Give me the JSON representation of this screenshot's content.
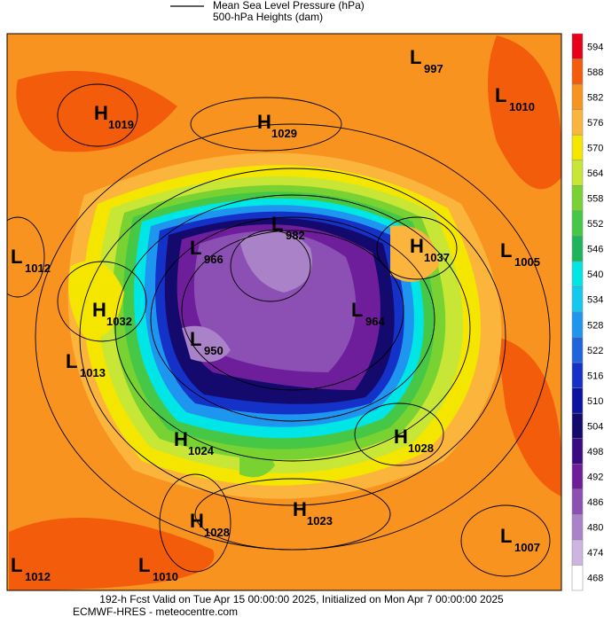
{
  "legend": [
    "Mean Sea Level Pressure (hPa)",
    "500-hPa Heights (dam)"
  ],
  "centers": [
    {
      "type": "L",
      "value": 997
    },
    {
      "type": "H",
      "value": 1019
    },
    {
      "type": "H",
      "value": 1029
    },
    {
      "type": "L",
      "value": 1010
    },
    {
      "type": "L",
      "value": 982
    },
    {
      "type": "L",
      "value": 1012
    },
    {
      "type": "L",
      "value": 966
    },
    {
      "type": "H",
      "value": 1037
    },
    {
      "type": "L",
      "value": 1005
    },
    {
      "type": "H",
      "value": 1032
    },
    {
      "type": "L",
      "value": 964
    },
    {
      "type": "L",
      "value": 950
    },
    {
      "type": "L",
      "value": 1013
    },
    {
      "type": "H",
      "value": 1024
    },
    {
      "type": "H",
      "value": 1028
    },
    {
      "type": "H",
      "value": 1023
    },
    {
      "type": "H",
      "value": 1028
    },
    {
      "type": "L",
      "value": 1007
    },
    {
      "type": "L",
      "value": 1012
    },
    {
      "type": "L",
      "value": 1010
    }
  ],
  "colorbar": {
    "ticks": [
      594,
      588,
      582,
      576,
      570,
      564,
      558,
      552,
      546,
      540,
      534,
      528,
      522,
      516,
      510,
      504,
      498,
      492,
      486,
      480,
      474,
      468
    ],
    "colors": [
      "#e8001a",
      "#f25c0a",
      "#f7931e",
      "#fbb43c",
      "#f5e600",
      "#c8e636",
      "#78d232",
      "#46c846",
      "#1eb45a",
      "#00e6e6",
      "#14c8f0",
      "#1e96f0",
      "#1e64dc",
      "#1432c8",
      "#0a14a0",
      "#140a6e",
      "#3c0a82",
      "#6e1e9b",
      "#8c50b4",
      "#aa82c8",
      "#cdb4e1",
      "#ffffff"
    ]
  },
  "footer": [
    "192-h Fcst Valid on Tue Apr 15 00:00:00 2025, Initialized on Mon Apr  7 00:00:00 2025",
    "ECMWF-HRES - meteocentre.com"
  ]
}
